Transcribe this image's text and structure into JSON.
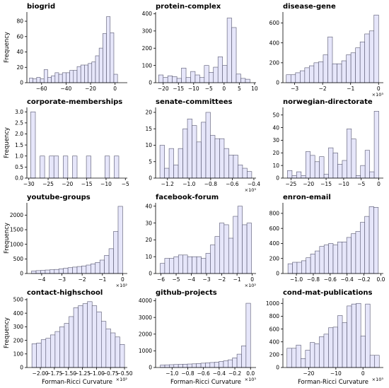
{
  "figure": {
    "ylabel": "Frequency",
    "xlabel": "Forman-Ricci Curvature",
    "bar_fill": "#e6e6fa",
    "bar_stroke": "#55556e"
  },
  "chart_data": [
    {
      "type": "bar",
      "title": "biogrid",
      "bin_edges": [
        -70,
        -67,
        -64,
        -61,
        -58,
        -55,
        -52,
        -49,
        -46,
        -43,
        -40,
        -37,
        -34,
        -31,
        -28,
        -25,
        -22,
        -19,
        -16,
        -13,
        -10,
        -7,
        -4,
        -1,
        2,
        5
      ],
      "values": [
        6,
        5,
        7,
        5,
        17,
        7,
        9,
        13,
        11,
        13,
        13,
        16,
        16,
        21,
        23,
        23,
        25,
        27,
        35,
        45,
        64,
        86,
        65,
        11,
        0
      ],
      "xlim": [
        -72,
        10
      ],
      "ylim": [
        0,
        92
      ],
      "xticks": [
        -60,
        -40,
        -20,
        0
      ],
      "xtick_labels": [
        "−60",
        "−40",
        "−20",
        "0"
      ],
      "yticks": [
        0,
        20,
        40,
        60,
        80
      ],
      "ytick_labels": [
        "0",
        "20",
        "40",
        "60",
        "80"
      ],
      "multiplier": "",
      "show_ylabel": true,
      "show_xlabel": false
    },
    {
      "type": "bar",
      "title": "protein-complex",
      "bin_edges": [
        -21.5,
        -20,
        -18.5,
        -17,
        -15.5,
        -14,
        -12.5,
        -11,
        -9.5,
        -8,
        -6.5,
        -5,
        -3.5,
        -2,
        -0.5,
        1,
        2.5,
        4,
        5.5,
        7,
        8.5
      ],
      "values": [
        45,
        30,
        40,
        35,
        25,
        85,
        30,
        65,
        45,
        30,
        100,
        60,
        90,
        150,
        100,
        375,
        320,
        50,
        25,
        20
      ],
      "xlim": [
        -22.5,
        10.5
      ],
      "ylim": [
        0,
        410
      ],
      "xticks": [
        -20,
        -15,
        -10,
        -5,
        0,
        5,
        10
      ],
      "xtick_labels": [
        "−20",
        "−15",
        "−10",
        "−5",
        "0",
        "5",
        "10"
      ],
      "yticks": [
        0,
        100,
        200,
        300,
        400
      ],
      "ytick_labels": [
        "0",
        "100",
        "200",
        "300",
        "400"
      ],
      "multiplier": "",
      "show_ylabel": false,
      "show_xlabel": false
    },
    {
      "type": "bar",
      "title": "disease-gene",
      "bin_edges": [
        -3.3,
        -3.135,
        -2.97,
        -2.805,
        -2.64,
        -2.475,
        -2.31,
        -2.145,
        -1.98,
        -1.815,
        -1.65,
        -1.485,
        -1.32,
        -1.155,
        -0.99,
        -0.825,
        -0.66,
        -0.495,
        -0.33,
        -0.165,
        0
      ],
      "values": [
        80,
        80,
        100,
        120,
        150,
        170,
        200,
        210,
        280,
        460,
        190,
        190,
        220,
        280,
        300,
        350,
        410,
        490,
        520,
        680
      ],
      "xlim": [
        -3.42,
        0.17
      ],
      "ylim": [
        0,
        710
      ],
      "xticks": [
        -3,
        -2,
        -1,
        0
      ],
      "xtick_labels": [
        "−3",
        "−2",
        "−1",
        "0"
      ],
      "yticks": [
        0,
        200,
        400,
        600
      ],
      "ytick_labels": [
        "0",
        "200",
        "400",
        "600"
      ],
      "multiplier": "×10³",
      "show_ylabel": false,
      "show_xlabel": false
    },
    {
      "type": "bar",
      "title": "corporate-memberships",
      "bin_edges": [
        -29.5,
        -28.3,
        -27.1,
        -25.9,
        -24.7,
        -23.5,
        -22.3,
        -21.1,
        -19.9,
        -18.7,
        -17.5,
        -16.3,
        -15.1,
        -13.9,
        -12.7,
        -11.5,
        -10.3,
        -9.1,
        -7.9,
        -6.7,
        -5.5
      ],
      "values": [
        3,
        0,
        1,
        0,
        1,
        1,
        0,
        1,
        0,
        1,
        0,
        0,
        1,
        0,
        0,
        0,
        1,
        0,
        1,
        0
      ],
      "xlim": [
        -30.5,
        -4.5
      ],
      "ylim": [
        0,
        3.2
      ],
      "xticks": [
        -30,
        -25,
        -20,
        -15,
        -10,
        -5
      ],
      "xtick_labels": [
        "−30",
        "−25",
        "−20",
        "−15",
        "−10",
        "−5"
      ],
      "yticks": [
        0,
        0.5,
        1,
        1.5,
        2,
        2.5,
        3
      ],
      "ytick_labels": [
        "0.0",
        "0.5",
        "1.0",
        "1.5",
        "2.0",
        "2.5",
        "3.0"
      ],
      "multiplier": "",
      "show_ylabel": true,
      "show_xlabel": false
    },
    {
      "type": "bar",
      "title": "senate-committees",
      "bin_edges": [
        -1.27,
        -1.2275,
        -1.185,
        -1.1425,
        -1.1,
        -1.0575,
        -1.015,
        -0.9725,
        -0.93,
        -0.8875,
        -0.845,
        -0.8025,
        -0.76,
        -0.7175,
        -0.675,
        -0.6325,
        -0.59,
        -0.5475,
        -0.505,
        -0.4625,
        -0.42
      ],
      "values": [
        10,
        3,
        9,
        4,
        9,
        15,
        18,
        16,
        11,
        17,
        20,
        13,
        12,
        12,
        9,
        7,
        7,
        4,
        3,
        2
      ],
      "xlim": [
        -1.31,
        -0.38
      ],
      "ylim": [
        0,
        21.5
      ],
      "xticks": [
        -1.2,
        -1.0,
        -0.8,
        -0.6,
        -0.4
      ],
      "xtick_labels": [
        "−1.2",
        "−1.0",
        "−0.8",
        "−0.6",
        "−0.4"
      ],
      "yticks": [
        0,
        5,
        10,
        15,
        20
      ],
      "ytick_labels": [
        "0",
        "5",
        "10",
        "15",
        "20"
      ],
      "multiplier": "×10³",
      "show_ylabel": false,
      "show_xlabel": false
    },
    {
      "type": "bar",
      "title": "norwegian-directorate",
      "bin_edges": [
        -26,
        -24.7,
        -23.4,
        -22.1,
        -20.8,
        -19.5,
        -18.2,
        -16.9,
        -15.6,
        -14.3,
        -13,
        -11.7,
        -10.4,
        -9.1,
        -7.8,
        -6.5,
        -5.2,
        -3.9,
        -2.6,
        -1.3,
        0
      ],
      "values": [
        6,
        2,
        5,
        2,
        21,
        18,
        13,
        17,
        3,
        24,
        20,
        11,
        14,
        39,
        31,
        2,
        10,
        22,
        5,
        53
      ],
      "xlim": [
        -27.3,
        1.3
      ],
      "ylim": [
        0,
        56
      ],
      "xticks": [
        -25,
        -20,
        -15,
        -10,
        -5,
        0
      ],
      "xtick_labels": [
        "−25",
        "−20",
        "−15",
        "−10",
        "−5",
        "0"
      ],
      "yticks": [
        0,
        10,
        20,
        30,
        40,
        50
      ],
      "ytick_labels": [
        "0",
        "10",
        "20",
        "30",
        "40",
        "50"
      ],
      "multiplier": "",
      "show_ylabel": false,
      "show_xlabel": false
    },
    {
      "type": "bar",
      "title": "youtube-groups",
      "bin_edges": [
        -4.5,
        -4.275,
        -4.05,
        -3.825,
        -3.6,
        -3.375,
        -3.15,
        -2.925,
        -2.7,
        -2.475,
        -2.25,
        -2.025,
        -1.8,
        -1.575,
        -1.35,
        -1.125,
        -0.9,
        -0.675,
        -0.45,
        -0.225,
        0
      ],
      "values": [
        90,
        100,
        110,
        120,
        130,
        140,
        160,
        180,
        200,
        220,
        240,
        260,
        290,
        330,
        380,
        460,
        620,
        850,
        1440,
        2300
      ],
      "xlim": [
        -4.73,
        0.23
      ],
      "ylim": [
        0,
        2420
      ],
      "xticks": [
        -4,
        -3,
        -2,
        -1,
        0
      ],
      "xtick_labels": [
        "−4",
        "−3",
        "−2",
        "−1",
        "0"
      ],
      "yticks": [
        0,
        500,
        1000,
        1500,
        2000
      ],
      "ytick_labels": [
        "0",
        "500",
        "1000",
        "1500",
        "2000"
      ],
      "multiplier": "×10²",
      "show_ylabel": true,
      "show_xlabel": false
    },
    {
      "type": "bar",
      "title": "facebook-forum",
      "bin_edges": [
        -6.05,
        -5.75,
        -5.45,
        -5.15,
        -4.85,
        -4.55,
        -4.25,
        -3.95,
        -3.65,
        -3.35,
        -3.05,
        -2.75,
        -2.45,
        -2.15,
        -1.85,
        -1.55,
        -1.25,
        -0.95,
        -0.65,
        -0.35,
        -0.05
      ],
      "values": [
        6,
        9,
        9,
        10,
        11,
        11,
        10,
        10,
        10,
        9,
        12,
        17,
        22,
        30,
        29,
        21,
        34,
        40,
        29,
        30
      ],
      "xlim": [
        -6.35,
        0.25
      ],
      "ylim": [
        0,
        42
      ],
      "xticks": [
        -6,
        -5,
        -4,
        -3,
        -2,
        -1,
        0
      ],
      "xtick_labels": [
        "−6",
        "−5",
        "−4",
        "−3",
        "−2",
        "−1",
        "0"
      ],
      "yticks": [
        0,
        10,
        20,
        30,
        40
      ],
      "ytick_labels": [
        "0",
        "10",
        "20",
        "30",
        "40"
      ],
      "multiplier": "×10²",
      "show_ylabel": false,
      "show_xlabel": false
    },
    {
      "type": "bar",
      "title": "enron-email",
      "bin_edges": [
        -1.1,
        -1.0465,
        -0.993,
        -0.9395,
        -0.886,
        -0.8325,
        -0.779,
        -0.7255,
        -0.672,
        -0.6185,
        -0.565,
        -0.5115,
        -0.458,
        -0.4045,
        -0.351,
        -0.2975,
        -0.244,
        -0.1905,
        -0.137,
        -0.0835,
        -0.03
      ],
      "values": [
        130,
        150,
        150,
        170,
        210,
        260,
        300,
        360,
        380,
        400,
        380,
        420,
        420,
        480,
        530,
        560,
        680,
        760,
        890,
        880
      ],
      "xlim": [
        -1.16,
        0.03
      ],
      "ylim": [
        0,
        940
      ],
      "xticks": [
        -1.0,
        -0.8,
        -0.6,
        -0.4,
        -0.2,
        0.0
      ],
      "xtick_labels": [
        "−1.0",
        "−0.8",
        "−0.6",
        "−0.4",
        "−0.2",
        "0.0"
      ],
      "yticks": [
        0,
        200,
        400,
        600,
        800
      ],
      "ytick_labels": [
        "0",
        "200",
        "400",
        "600",
        "800"
      ],
      "multiplier": "",
      "show_ylabel": false,
      "show_xlabel": false
    },
    {
      "type": "bar",
      "title": "contact-highschool",
      "bin_edges": [
        -2.15,
        -2.0675,
        -1.985,
        -1.9025,
        -1.82,
        -1.7375,
        -1.655,
        -1.5725,
        -1.49,
        -1.4075,
        -1.325,
        -1.2425,
        -1.16,
        -1.0775,
        -0.995,
        -0.9125,
        -0.83,
        -0.7475,
        -0.665,
        -0.5825,
        -0.5
      ],
      "values": [
        175,
        180,
        205,
        215,
        240,
        265,
        300,
        325,
        375,
        440,
        455,
        470,
        485,
        455,
        410,
        340,
        285,
        255,
        225,
        170
      ],
      "xlim": [
        -2.24,
        -0.45
      ],
      "ylim": [
        0,
        510
      ],
      "xticks": [
        -2.0,
        -1.75,
        -1.5,
        -1.25,
        -1.0,
        -0.75,
        -0.5
      ],
      "xtick_labels": [
        "−2.00",
        "−1.75",
        "−1.50",
        "−1.25",
        "−1.00",
        "−0.75",
        "−0.50"
      ],
      "yticks": [
        0,
        100,
        200,
        300,
        400,
        500
      ],
      "ytick_labels": [
        "0",
        "100",
        "200",
        "300",
        "400",
        "500"
      ],
      "multiplier": "×10²",
      "show_ylabel": true,
      "show_xlabel": true
    },
    {
      "type": "bar",
      "title": "github-projects",
      "bin_edges": [
        -1.15,
        -1.0925,
        -1.035,
        -0.9775,
        -0.92,
        -0.8625,
        -0.805,
        -0.7475,
        -0.69,
        -0.6325,
        -0.575,
        -0.5175,
        -0.46,
        -0.4025,
        -0.345,
        -0.2875,
        -0.23,
        -0.1725,
        -0.115,
        -0.0575,
        0
      ],
      "values": [
        150,
        160,
        170,
        180,
        190,
        200,
        210,
        220,
        240,
        260,
        280,
        300,
        320,
        360,
        400,
        460,
        580,
        800,
        1300,
        3850
      ],
      "xlim": [
        -1.21,
        0.07
      ],
      "ylim": [
        0,
        4150
      ],
      "xticks": [
        -1.0,
        -0.8,
        -0.6,
        -0.4,
        -0.2,
        0.0
      ],
      "xtick_labels": [
        "−1.0",
        "−0.8",
        "−0.6",
        "−0.4",
        "−0.2",
        "0.0"
      ],
      "yticks": [
        0,
        1000,
        2000,
        3000,
        4000
      ],
      "ytick_labels": [
        "0",
        "1000",
        "2000",
        "3000",
        "4000"
      ],
      "multiplier": "×10³",
      "show_ylabel": false,
      "show_xlabel": true
    },
    {
      "type": "bar",
      "title": "cond-mat-publications",
      "bin_edges": [
        -28,
        -26.3,
        -24.6,
        -22.9,
        -21.2,
        -19.5,
        -17.8,
        -16.1,
        -14.4,
        -12.7,
        -11,
        -9.3,
        -7.6,
        -5.9,
        -4.2,
        -2.5,
        -0.8,
        0.9,
        2.6,
        4.3,
        6
      ],
      "values": [
        300,
        300,
        350,
        140,
        270,
        390,
        370,
        480,
        520,
        620,
        630,
        810,
        700,
        960,
        990,
        1000,
        490,
        990,
        190,
        190
      ],
      "xlim": [
        -29.5,
        7.5
      ],
      "ylim": [
        0,
        1080
      ],
      "xticks": [
        -20,
        -10,
        0
      ],
      "xtick_labels": [
        "−20",
        "−10",
        "0"
      ],
      "yticks": [
        0,
        200,
        400,
        600,
        800,
        1000
      ],
      "ytick_labels": [
        "0",
        "200",
        "400",
        "600",
        "800",
        "1000"
      ],
      "multiplier": "×10³",
      "show_ylabel": false,
      "show_xlabel": true
    }
  ]
}
